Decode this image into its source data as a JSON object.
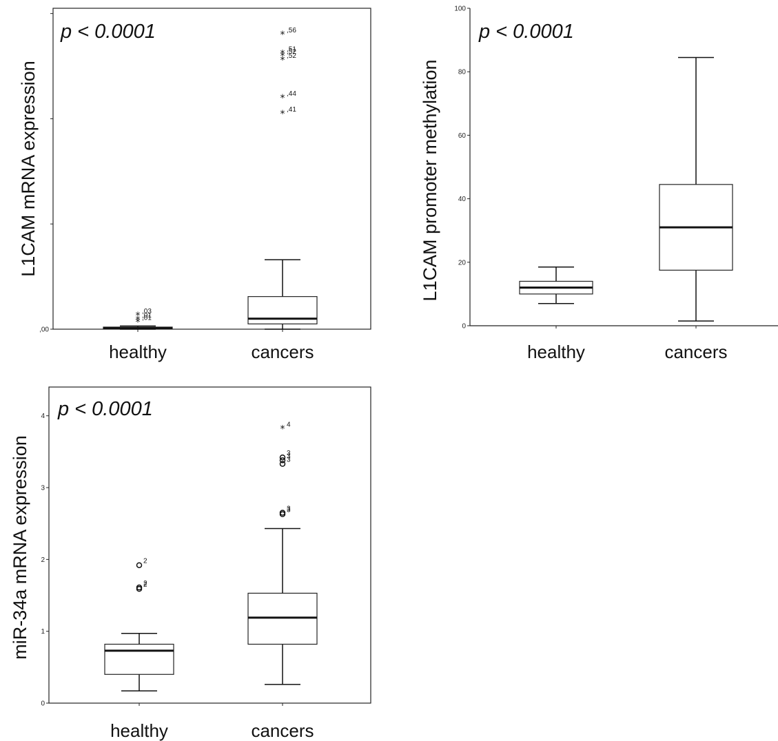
{
  "chart_data": [
    {
      "type": "box",
      "p_value": "p < 0.0001",
      "ylabel": "L1CAM mRNA expression",
      "categories": [
        "healthy",
        "cancers"
      ],
      "ylim": [
        0,
        3.05
      ],
      "y_ticks": [
        0,
        1,
        2,
        3
      ],
      "y_tick_labels": [
        ",00",
        "",
        "",
        ""
      ],
      "frame": true,
      "boxes": [
        {
          "name": "healthy",
          "whisker_low": 0.0,
          "q1": 0.005,
          "median": 0.01,
          "q3": 0.02,
          "whisker_high": 0.03
        },
        {
          "name": "cancers",
          "whisker_low": 0.0,
          "q1": 0.05,
          "median": 0.1,
          "q3": 0.31,
          "whisker_high": 0.66
        }
      ],
      "outliers": [
        {
          "category": "healthy",
          "y": 0.13,
          "marker": "star",
          "label": ",03"
        },
        {
          "category": "healthy",
          "y": 0.09,
          "marker": "star",
          "label": ",01"
        },
        {
          "category": "healthy",
          "y": 0.07,
          "marker": "star",
          "label": ",01"
        },
        {
          "category": "cancers",
          "y": 2.8,
          "marker": "star",
          "label": ",56"
        },
        {
          "category": "cancers",
          "y": 2.62,
          "marker": "star",
          "label": ",51"
        },
        {
          "category": "cancers",
          "y": 2.6,
          "marker": "star",
          "label": ",52"
        },
        {
          "category": "cancers",
          "y": 2.56,
          "marker": "star",
          "label": ",52"
        },
        {
          "category": "cancers",
          "y": 2.2,
          "marker": "star",
          "label": ",44"
        },
        {
          "category": "cancers",
          "y": 2.05,
          "marker": "star",
          "label": ",41"
        }
      ]
    },
    {
      "type": "box",
      "p_value": "p < 0.0001",
      "ylabel": "L1CAM promoter methylation",
      "categories": [
        "healthy",
        "cancers"
      ],
      "ylim": [
        0,
        100
      ],
      "y_ticks": [
        0,
        20,
        40,
        60,
        80,
        100
      ],
      "y_tick_labels": [
        "0",
        "20",
        "40",
        "60",
        "80",
        "100"
      ],
      "frame": false,
      "boxes": [
        {
          "name": "healthy",
          "whisker_low": 7,
          "q1": 10,
          "median": 12,
          "q3": 14,
          "whisker_high": 18.5
        },
        {
          "name": "cancers",
          "whisker_low": 1.5,
          "q1": 17.5,
          "median": 31,
          "q3": 44.5,
          "whisker_high": 84.5
        }
      ],
      "outliers": []
    },
    {
      "type": "box",
      "p_value": "p < 0.0001",
      "ylabel": "miR-34a mRNA expression",
      "categories": [
        "healthy",
        "cancers"
      ],
      "ylim": [
        0,
        4.4
      ],
      "y_ticks": [
        0,
        1,
        2,
        3,
        4
      ],
      "y_tick_labels": [
        "0",
        "1",
        "2",
        "3",
        "4"
      ],
      "frame": true,
      "boxes": [
        {
          "name": "healthy",
          "whisker_low": 0.17,
          "q1": 0.4,
          "median": 0.73,
          "q3": 0.82,
          "whisker_high": 0.97
        },
        {
          "name": "cancers",
          "whisker_low": 0.26,
          "q1": 0.82,
          "median": 1.19,
          "q3": 1.53,
          "whisker_high": 2.43
        }
      ],
      "outliers": [
        {
          "category": "healthy",
          "y": 1.92,
          "marker": "circle",
          "label": "2"
        },
        {
          "category": "healthy",
          "y": 1.61,
          "marker": "circle",
          "label": "2"
        },
        {
          "category": "healthy",
          "y": 1.59,
          "marker": "circle",
          "label": "2"
        },
        {
          "category": "cancers",
          "y": 3.82,
          "marker": "star",
          "label": "4"
        },
        {
          "category": "cancers",
          "y": 3.42,
          "marker": "circle",
          "label": "3"
        },
        {
          "category": "cancers",
          "y": 3.38,
          "marker": "circle",
          "label": "3"
        },
        {
          "category": "cancers",
          "y": 3.33,
          "marker": "circle",
          "label": "3"
        },
        {
          "category": "cancers",
          "y": 2.65,
          "marker": "circle",
          "label": "3"
        },
        {
          "category": "cancers",
          "y": 2.63,
          "marker": "circle",
          "label": "3"
        }
      ]
    }
  ]
}
